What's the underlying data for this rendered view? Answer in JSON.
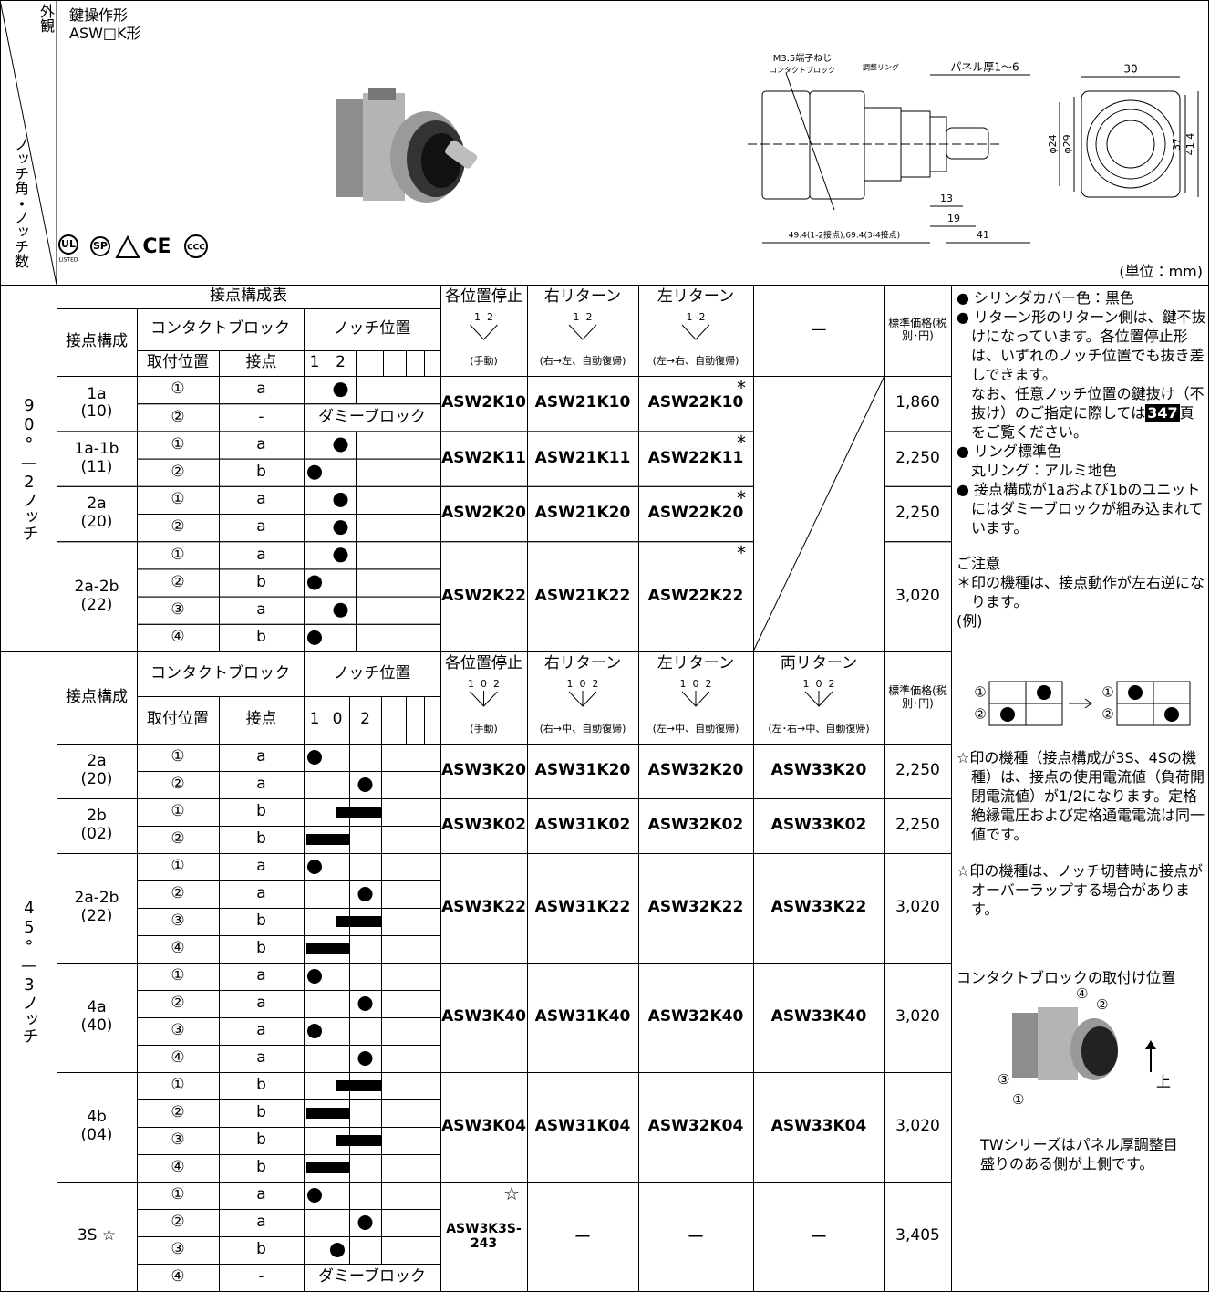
{
  "header": {
    "corner_top": "外観",
    "corner_bottom": "ノッチ角・ノッチ数",
    "type": "鍵操作形",
    "model": "ASW□K形",
    "certifications": [
      "UL",
      "LISTED",
      "SP",
      "CE",
      "CCC"
    ],
    "unit": "(単位：mm)",
    "drawing": {
      "terminal": "M3.5端子ねじ",
      "block": "コンタクトブロック",
      "ring": "調整リング",
      "panel": "パネル厚1〜6",
      "width": "30",
      "d24": "φ24",
      "d29": "φ29",
      "h37": "37",
      "h41": "41.4",
      "l13": "13",
      "l19": "19",
      "l41": "41",
      "l49": "49.4(1-2接点),69.4(3-4接点)"
    }
  },
  "section1": {
    "label": "90°—2ノッチ",
    "table_title": "接点構成表",
    "config": "接点構成",
    "block": "コンタクトブロック",
    "notch": "ノッチ位置",
    "position": "取付位置",
    "contact": "接点",
    "notches": [
      "1",
      "2"
    ],
    "op_positions": [
      "1",
      "2"
    ],
    "ops": [
      {
        "title": "各位置停止",
        "sub": "(手動)"
      },
      {
        "title": "右リターン",
        "sub": "(右→左、自動復帰)"
      },
      {
        "title": "左リターン",
        "sub": "(左→右、自動復帰)"
      },
      {
        "title": "—"
      }
    ],
    "price": "標準価格(税別･円)",
    "groups": [
      {
        "name": "1a",
        "code": "(10)",
        "rows": [
          {
            "pos": "①",
            "contact": "a"
          },
          {
            "pos": "②",
            "contact": "-",
            "note": "ダミーブロック"
          }
        ],
        "models": [
          {
            "name": "ASW2K10"
          },
          {
            "name": "ASW21K10"
          },
          {
            "name": "ASW22K10",
            "mark": "*"
          }
        ],
        "price": "1,860"
      },
      {
        "name": "1a-1b",
        "code": "(11)",
        "rows": [
          {
            "pos": "①",
            "contact": "a"
          },
          {
            "pos": "②",
            "contact": "b"
          }
        ],
        "models": [
          {
            "name": "ASW2K11"
          },
          {
            "name": "ASW21K11"
          },
          {
            "name": "ASW22K11",
            "mark": "*"
          }
        ],
        "price": "2,250"
      },
      {
        "name": "2a",
        "code": "(20)",
        "rows": [
          {
            "pos": "①",
            "contact": "a"
          },
          {
            "pos": "②",
            "contact": "a"
          }
        ],
        "models": [
          {
            "name": "ASW2K20"
          },
          {
            "name": "ASW21K20"
          },
          {
            "name": "ASW22K20",
            "mark": "*"
          }
        ],
        "price": "2,250"
      },
      {
        "name": "2a-2b",
        "code": "(22)",
        "rows": [
          {
            "pos": "①",
            "contact": "a"
          },
          {
            "pos": "②",
            "contact": "b"
          },
          {
            "pos": "③",
            "contact": "a"
          },
          {
            "pos": "④",
            "contact": "b"
          }
        ],
        "models": [
          {
            "name": "ASW2K22"
          },
          {
            "name": "ASW21K22"
          },
          {
            "name": "ASW22K22",
            "mark": "*"
          }
        ],
        "price": "3,020"
      }
    ]
  },
  "section2": {
    "label": "45°—3ノッチ",
    "config": "接点構成",
    "block": "コンタクトブロック",
    "notch": "ノッチ位置",
    "position": "取付位置",
    "contact": "接点",
    "notches": [
      "1",
      "0",
      "2"
    ],
    "op_positions": [
      "1",
      "0",
      "2"
    ],
    "ops": [
      {
        "title": "各位置停止",
        "sub": "(手動)"
      },
      {
        "title": "右リターン",
        "sub": "(右→中、自動復帰)"
      },
      {
        "title": "左リターン",
        "sub": "(左→中、自動復帰)"
      },
      {
        "title": "両リターン",
        "sub": "(左･右→中、自動復帰)"
      }
    ],
    "price": "標準価格(税別･円)",
    "groups": [
      {
        "name": "2a",
        "code": "(20)",
        "rows": [
          {
            "pos": "①",
            "contact": "a"
          },
          {
            "pos": "②",
            "contact": "a"
          }
        ],
        "models": [
          {
            "name": "ASW3K20"
          },
          {
            "name": "ASW31K20"
          },
          {
            "name": "ASW32K20"
          },
          {
            "name": "ASW33K20"
          }
        ],
        "price": "2,250"
      },
      {
        "name": "2b",
        "code": "(02)",
        "rows": [
          {
            "pos": "①",
            "contact": "b"
          },
          {
            "pos": "②",
            "contact": "b"
          }
        ],
        "models": [
          {
            "name": "ASW3K02"
          },
          {
            "name": "ASW31K02"
          },
          {
            "name": "ASW32K02"
          },
          {
            "name": "ASW33K02"
          }
        ],
        "price": "2,250"
      },
      {
        "name": "2a-2b",
        "code": "(22)",
        "rows": [
          {
            "pos": "①",
            "contact": "a"
          },
          {
            "pos": "②",
            "contact": "a"
          },
          {
            "pos": "③",
            "contact": "b"
          },
          {
            "pos": "④",
            "contact": "b"
          }
        ],
        "models": [
          {
            "name": "ASW3K22"
          },
          {
            "name": "ASW31K22"
          },
          {
            "name": "ASW32K22"
          },
          {
            "name": "ASW33K22"
          }
        ],
        "price": "3,020"
      },
      {
        "name": "4a",
        "code": "(40)",
        "rows": [
          {
            "pos": "①",
            "contact": "a"
          },
          {
            "pos": "②",
            "contact": "a"
          },
          {
            "pos": "③",
            "contact": "a"
          },
          {
            "pos": "④",
            "contact": "a"
          }
        ],
        "models": [
          {
            "name": "ASW3K40"
          },
          {
            "name": "ASW31K40"
          },
          {
            "name": "ASW32K40"
          },
          {
            "name": "ASW33K40"
          }
        ],
        "price": "3,020"
      },
      {
        "name": "4b",
        "code": "(04)",
        "rows": [
          {
            "pos": "①",
            "contact": "b"
          },
          {
            "pos": "②",
            "contact": "b"
          },
          {
            "pos": "③",
            "contact": "b"
          },
          {
            "pos": "④",
            "contact": "b"
          }
        ],
        "models": [
          {
            "name": "ASW3K04"
          },
          {
            "name": "ASW31K04"
          },
          {
            "name": "ASW32K04"
          },
          {
            "name": "ASW33K04"
          }
        ],
        "price": "3,020"
      },
      {
        "name": "3S ☆",
        "rows": [
          {
            "pos": "①",
            "contact": "a"
          },
          {
            "pos": "②",
            "contact": "a"
          },
          {
            "pos": "③",
            "contact": "b"
          },
          {
            "pos": "④",
            "contact": "-",
            "note": "ダミーブロック"
          }
        ],
        "models": [
          {
            "name": "ASW3K3S-243",
            "mark": "☆"
          },
          {
            "name": "—"
          },
          {
            "name": "—"
          },
          {
            "name": "—"
          }
        ],
        "price": "3,405"
      }
    ]
  },
  "notes": {
    "cover": "● シリンダカバー色：黒色",
    "return": "● リターン形のリターン側は、鍵不抜けになっています。各位置停止形は、いずれのノッチ位置でも抜き差しできます。",
    "order_pre": "なお、任意ノッチ位置の鍵抜け（不抜け）のご指定に際しては",
    "order_page": "347",
    "order_post": "頁をご覧ください。",
    "ring": "● リング標準色",
    "ring_color": "丸リング：アルミ地色",
    "dummy": "● 接点構成が1aおよび1bのユニットにはダミーブロックが組み込まれています。",
    "caution": "ご注意",
    "asterisk": "＊印の機種は、接点動作が左右逆になります。",
    "example": "(例)",
    "example_labels": [
      "①",
      "②"
    ],
    "star_current": "☆印の機種（接点構成が3S、4Sの機種）は、接点の使用電流値（負荷開閉電流値）が1/2になります。定格絶縁電圧および定格通電電流は同一値です。",
    "star_overlap": "☆印の機種は、ノッチ切替時に接点がオーバーラップする場合があります。",
    "mount_title": "コンタクトブロックの取付け位置",
    "mount_labels": [
      "④",
      "②",
      "③",
      "①",
      "上"
    ],
    "tw": "TWシリーズはパネル厚調整目盛りのある側が上側です。"
  }
}
